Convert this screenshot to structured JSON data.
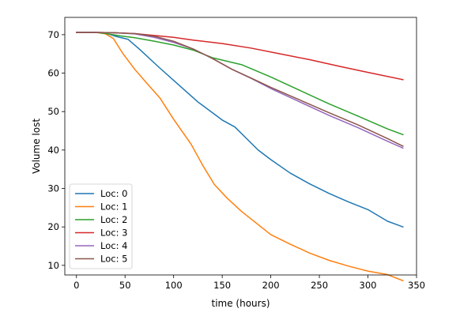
{
  "chart_data": {
    "type": "line",
    "title": "",
    "xlabel": "time (hours)",
    "ylabel": "Volume lost",
    "xlim": [
      -12,
      350
    ],
    "ylim": [
      7.5,
      74.5
    ],
    "x_ticks": [
      0,
      50,
      100,
      150,
      200,
      250,
      300,
      350
    ],
    "y_ticks": [
      10,
      20,
      30,
      40,
      50,
      60,
      70
    ],
    "grid": false,
    "legend_position": "lower-left",
    "series": [
      {
        "name": "Loc: 0",
        "color": "#1f77b4",
        "points": [
          [
            0,
            70.6
          ],
          [
            20,
            70.6
          ],
          [
            30,
            70.4
          ],
          [
            40,
            69.6
          ],
          [
            53,
            68.8
          ],
          [
            65,
            66.2
          ],
          [
            85,
            61.5
          ],
          [
            105,
            57
          ],
          [
            125,
            52.5
          ],
          [
            150,
            47.8
          ],
          [
            163,
            46
          ],
          [
            175,
            43
          ],
          [
            187,
            40
          ],
          [
            200,
            37.5
          ],
          [
            220,
            34
          ],
          [
            240,
            31.2
          ],
          [
            260,
            28.7
          ],
          [
            280,
            26.5
          ],
          [
            300,
            24.5
          ],
          [
            320,
            21.5
          ],
          [
            336,
            20
          ]
        ]
      },
      {
        "name": "Loc: 1",
        "color": "#ff7f0e",
        "points": [
          [
            0,
            70.6
          ],
          [
            20,
            70.6
          ],
          [
            30,
            70.2
          ],
          [
            38,
            69
          ],
          [
            48,
            65
          ],
          [
            60,
            61
          ],
          [
            72,
            57.5
          ],
          [
            86,
            53.5
          ],
          [
            100,
            48
          ],
          [
            118,
            41.5
          ],
          [
            130,
            36
          ],
          [
            142,
            31
          ],
          [
            155,
            27.5
          ],
          [
            170,
            24
          ],
          [
            185,
            21
          ],
          [
            200,
            18
          ],
          [
            220,
            15.5
          ],
          [
            240,
            13.2
          ],
          [
            260,
            11.3
          ],
          [
            280,
            9.8
          ],
          [
            300,
            8.5
          ],
          [
            320,
            7.6
          ],
          [
            336,
            6
          ]
        ]
      },
      {
        "name": "Loc: 2",
        "color": "#2ca02c",
        "points": [
          [
            0,
            70.6
          ],
          [
            20,
            70.6
          ],
          [
            30,
            70.3
          ],
          [
            45,
            69.7
          ],
          [
            60,
            69.2
          ],
          [
            80,
            68.3
          ],
          [
            100,
            67.3
          ],
          [
            120,
            66
          ],
          [
            140,
            64
          ],
          [
            170,
            62.2
          ],
          [
            200,
            59
          ],
          [
            230,
            55.5
          ],
          [
            260,
            52
          ],
          [
            290,
            48.8
          ],
          [
            320,
            45.5
          ],
          [
            336,
            44
          ]
        ]
      },
      {
        "name": "Loc: 3",
        "color": "#d62728",
        "points": [
          [
            0,
            70.6
          ],
          [
            20,
            70.6
          ],
          [
            40,
            70.5
          ],
          [
            60,
            70.3
          ],
          [
            80,
            69.8
          ],
          [
            100,
            69.3
          ],
          [
            120,
            68.6
          ],
          [
            150,
            67.7
          ],
          [
            180,
            66.5
          ],
          [
            210,
            65
          ],
          [
            240,
            63.5
          ],
          [
            270,
            61.8
          ],
          [
            300,
            60.2
          ],
          [
            336,
            58.3
          ]
        ]
      },
      {
        "name": "Loc: 4",
        "color": "#9467bd",
        "points": [
          [
            0,
            70.6
          ],
          [
            20,
            70.6
          ],
          [
            40,
            70.5
          ],
          [
            60,
            70.2
          ],
          [
            80,
            69.3
          ],
          [
            100,
            68
          ],
          [
            120,
            66.3
          ],
          [
            140,
            63.8
          ],
          [
            160,
            61
          ],
          [
            180,
            58.6
          ],
          [
            200,
            56
          ],
          [
            230,
            52.5
          ],
          [
            260,
            49
          ],
          [
            290,
            45.8
          ],
          [
            320,
            42.3
          ],
          [
            336,
            40.5
          ]
        ]
      },
      {
        "name": "Loc: 5",
        "color": "#8c564b",
        "points": [
          [
            0,
            70.6
          ],
          [
            20,
            70.6
          ],
          [
            40,
            70.5
          ],
          [
            60,
            70.3
          ],
          [
            80,
            69.6
          ],
          [
            100,
            68.3
          ],
          [
            120,
            66.3
          ],
          [
            140,
            63.8
          ],
          [
            160,
            61
          ],
          [
            180,
            58.7
          ],
          [
            200,
            56.3
          ],
          [
            230,
            53
          ],
          [
            260,
            49.7
          ],
          [
            290,
            46.5
          ],
          [
            320,
            43
          ],
          [
            336,
            41
          ]
        ]
      }
    ]
  }
}
